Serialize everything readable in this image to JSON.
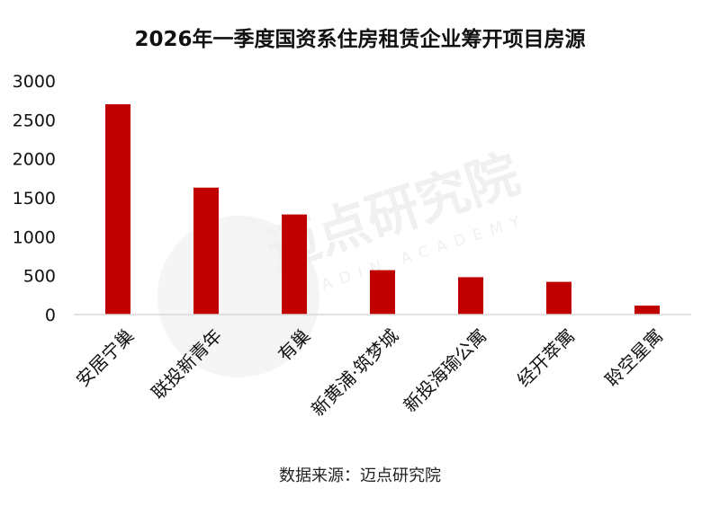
{
  "title": "2026年一季度国资系住房租赁企业筹开项目房源",
  "source": "数据来源：迈点研究院",
  "watermark": {
    "name": "迈点研究院",
    "sub": "MEADIN ACADEMY"
  },
  "colors": {
    "bar": "#c00000",
    "axis": "#d9d9d9"
  },
  "chart_data": {
    "type": "bar",
    "title": "2026年一季度国资系住房租赁企业筹开项目房源",
    "categories": [
      "安居宁巢",
      "联投新青年",
      "有巢",
      "新黄浦·筑梦城",
      "新投海瑜公寓",
      "经开萃寓",
      "聆空星寓"
    ],
    "values": [
      2700,
      1630,
      1285,
      570,
      480,
      420,
      115
    ],
    "ylim": [
      0,
      3000
    ],
    "yticks": [
      0,
      500,
      1000,
      1500,
      2000,
      2500,
      3000
    ],
    "xlabel": "",
    "ylabel": "",
    "grid": false,
    "legend": "none"
  }
}
